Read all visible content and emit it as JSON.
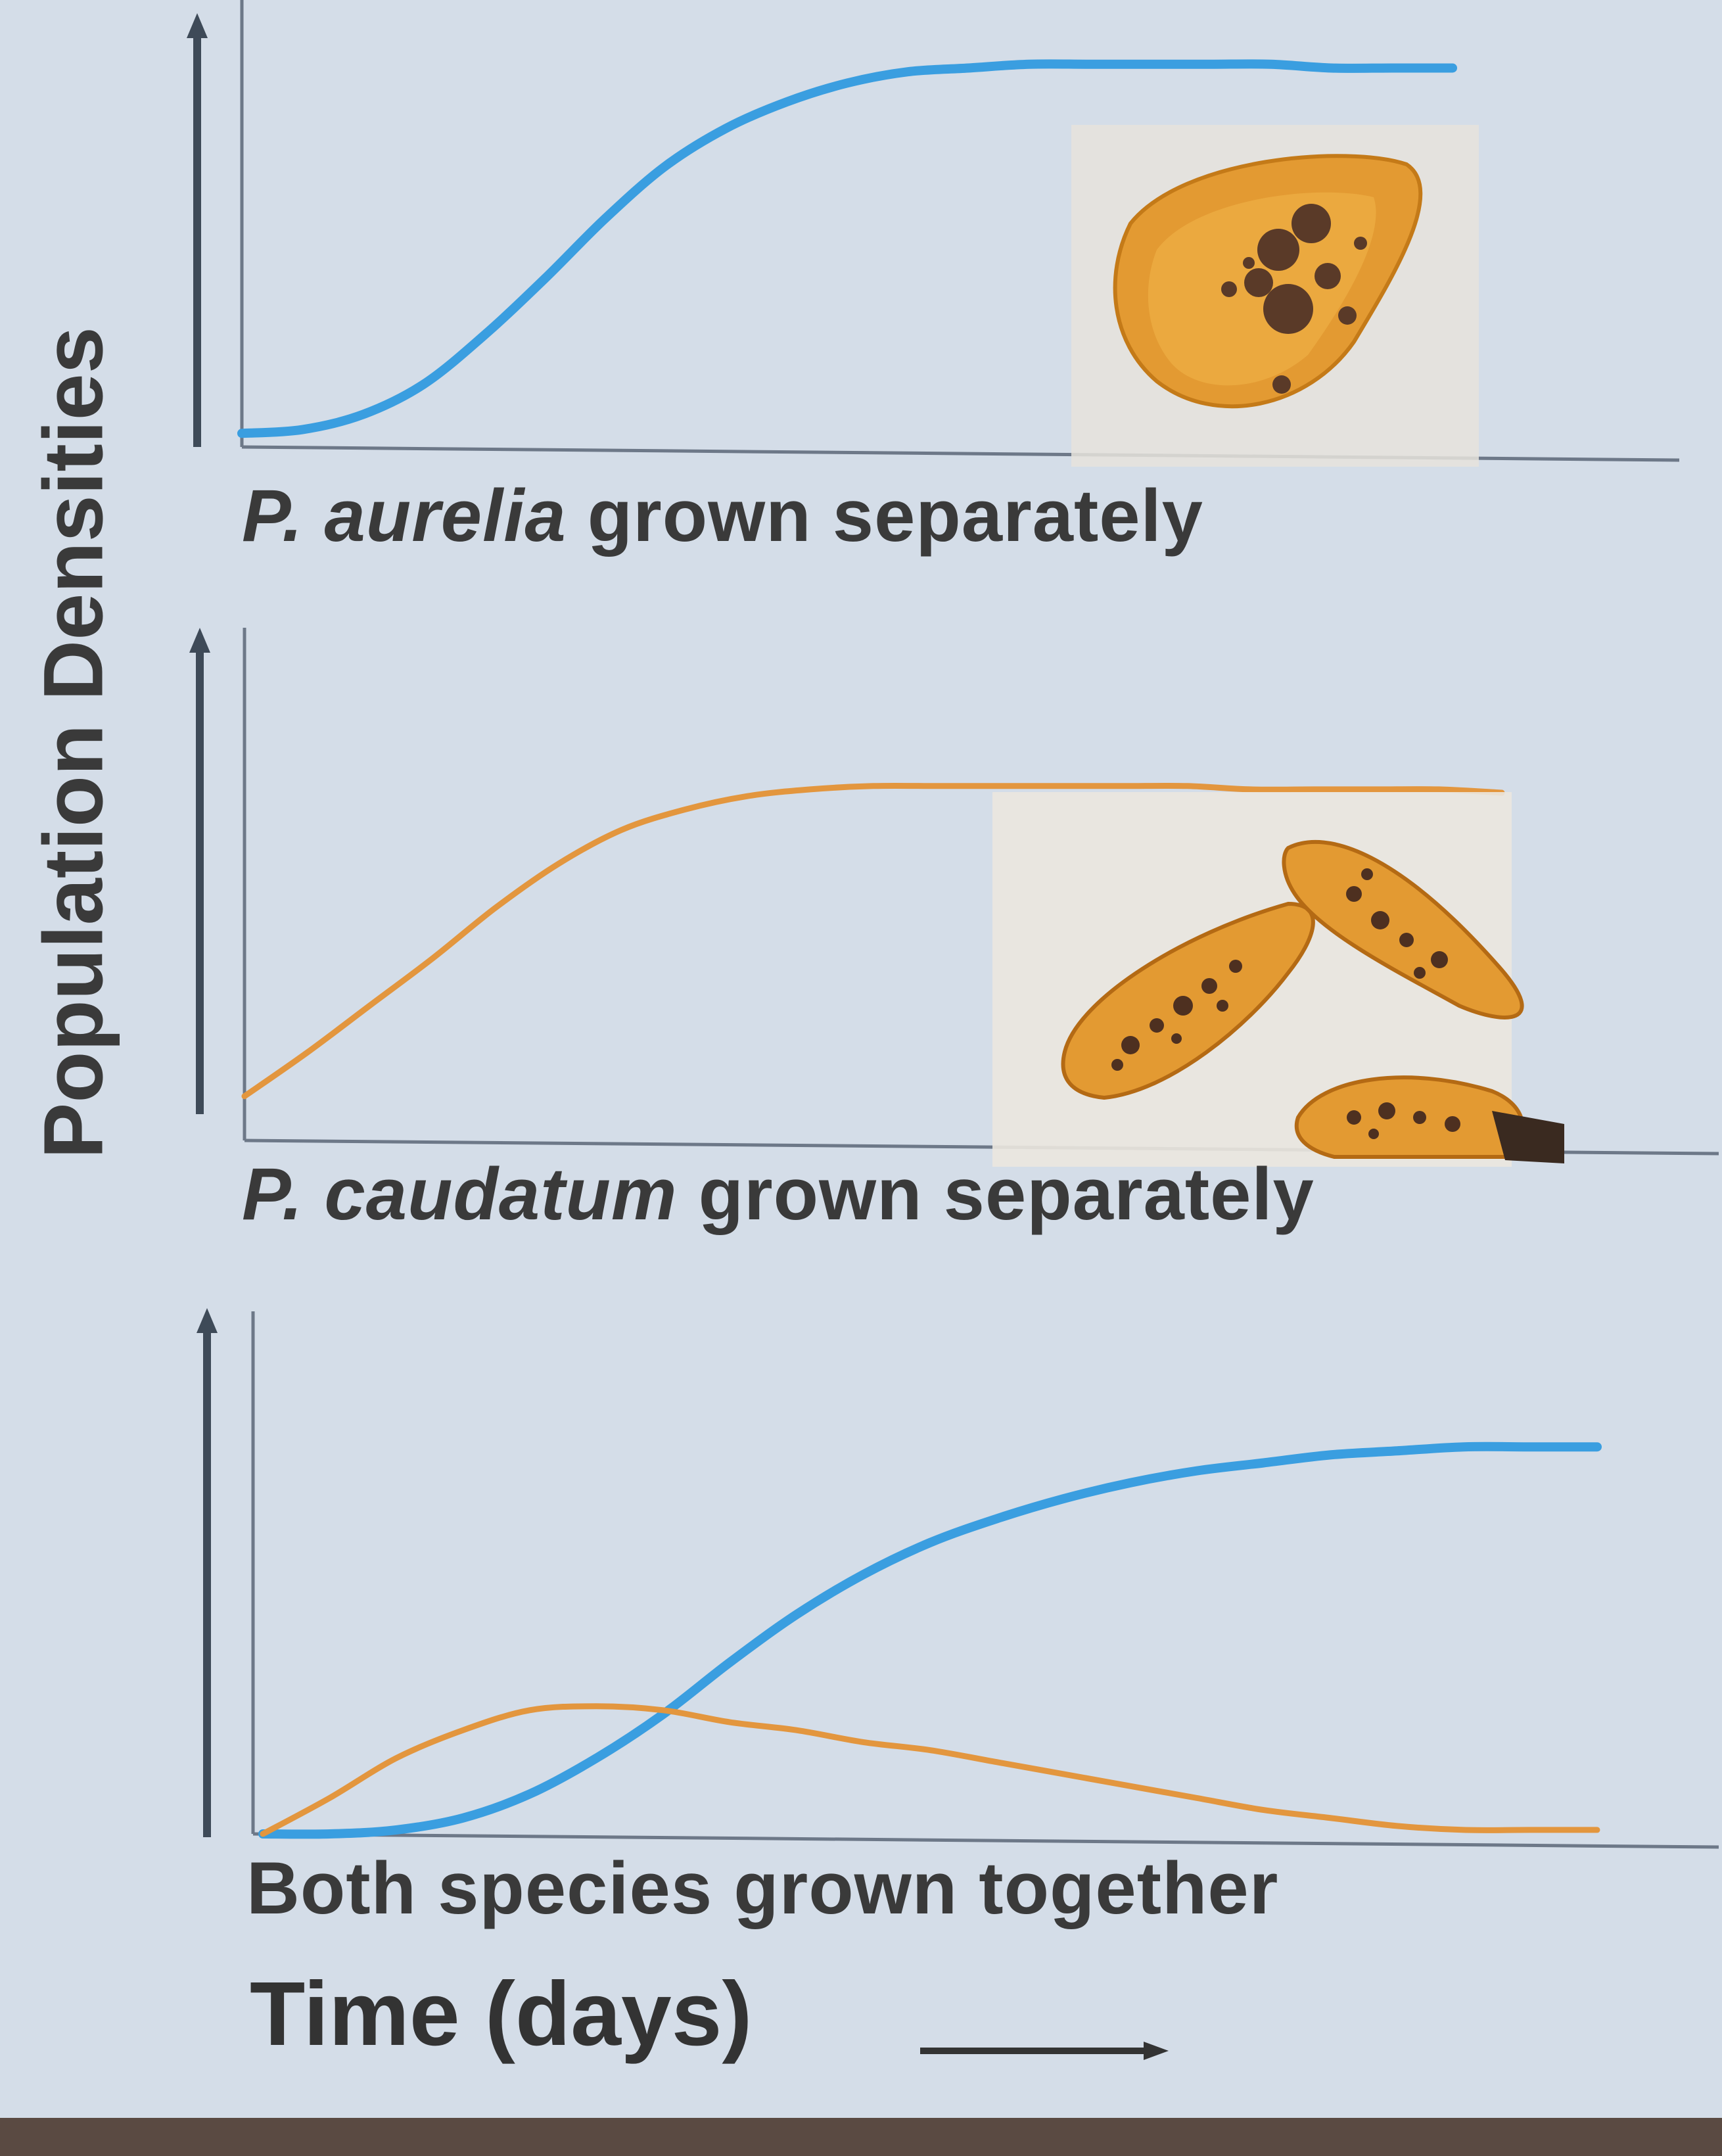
{
  "colors": {
    "background": "#d4dde8",
    "p_aurelia": "#3a9ee0",
    "p_caudatum": "#e3963e",
    "axis": "#3e4a58",
    "text": "#3a3a3a"
  },
  "ylabel": "Population Densities",
  "xlabel": "Time (days)",
  "chart_data": [
    {
      "type": "line",
      "title": "P. aurelia grown separately",
      "title_parts": {
        "species": "P. aurelia",
        "rest": " grown separately"
      },
      "xlabel": "Time (days)",
      "ylabel": "Population Densities",
      "xlim": [
        0,
        100
      ],
      "ylim": [
        0,
        100
      ],
      "grid": false,
      "illustration": "paramecium-aurelia-image",
      "series": [
        {
          "color": "#3a9ee0",
          "x": [
            0,
            5,
            10,
            15,
            20,
            25,
            30,
            35,
            40,
            45,
            50,
            55,
            60,
            65,
            70,
            75,
            80,
            85,
            90,
            95,
            100
          ],
          "values": [
            1,
            2,
            6,
            14,
            27,
            42,
            58,
            72,
            82,
            89,
            94,
            97,
            98,
            99,
            99,
            99,
            99,
            99,
            98,
            98,
            98
          ]
        }
      ]
    },
    {
      "type": "line",
      "title": "P. caudatum grown separately",
      "title_parts": {
        "species": "P. caudatum",
        "rest": " grown separately"
      },
      "xlabel": "Time (days)",
      "ylabel": "Population Densities",
      "xlim": [
        0,
        100
      ],
      "ylim": [
        0,
        100
      ],
      "grid": false,
      "illustration": "paramecium-caudatum-image",
      "series": [
        {
          "color": "#e3963e",
          "x": [
            0,
            5,
            10,
            15,
            20,
            25,
            30,
            35,
            40,
            45,
            50,
            55,
            60,
            65,
            70,
            75,
            80,
            85,
            90,
            95,
            100
          ],
          "values": [
            2,
            15,
            29,
            43,
            58,
            71,
            81,
            87,
            91,
            93,
            94,
            94,
            94,
            94,
            94,
            94,
            93,
            93,
            93,
            93,
            92
          ]
        }
      ]
    },
    {
      "type": "line",
      "title": "Both species grown together",
      "xlabel": "Time (days)",
      "ylabel": "Population Densities",
      "xlim": [
        0,
        100
      ],
      "ylim": [
        0,
        100
      ],
      "grid": false,
      "series": [
        {
          "color": "#3a9ee0",
          "x": [
            0,
            5,
            10,
            15,
            20,
            25,
            30,
            35,
            40,
            45,
            50,
            55,
            60,
            65,
            70,
            75,
            80,
            85,
            90,
            95,
            100
          ],
          "values": [
            0,
            0,
            1,
            4,
            10,
            19,
            30,
            43,
            55,
            65,
            73,
            79,
            84,
            88,
            91,
            93,
            95,
            96,
            97,
            97,
            97
          ]
        },
        {
          "color": "#e3963e",
          "x": [
            0,
            5,
            10,
            15,
            20,
            25,
            30,
            35,
            40,
            45,
            50,
            55,
            60,
            65,
            70,
            75,
            80,
            85,
            90,
            95,
            100
          ],
          "values": [
            0,
            9,
            19,
            26,
            31,
            32,
            31,
            28,
            26,
            23,
            21,
            18,
            15,
            12,
            9,
            6,
            4,
            2,
            1,
            1,
            1
          ]
        }
      ]
    }
  ]
}
